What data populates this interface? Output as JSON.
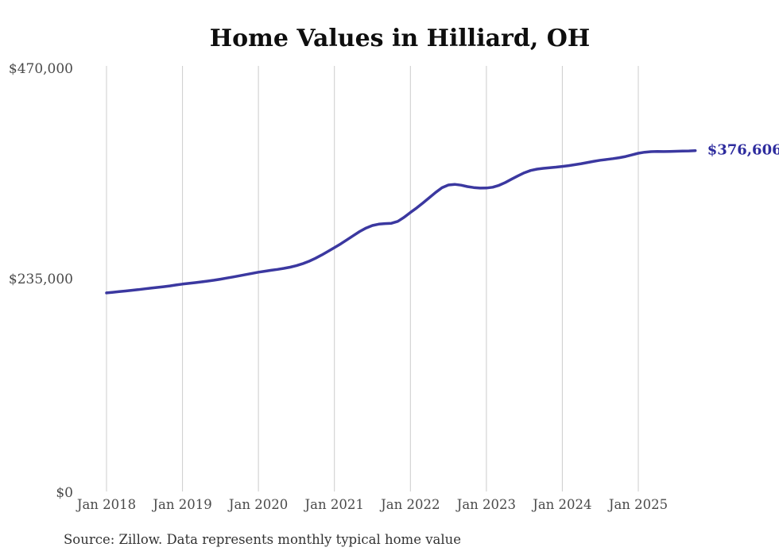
{
  "page": {
    "background": "#ffffff"
  },
  "source_note": "Source: Zillow. Data represents monthly typical home value",
  "chart_data": {
    "type": "line",
    "title": "Home Values in Hilliard, OH",
    "xlabel": "",
    "ylabel": "",
    "ylim": [
      0,
      470000
    ],
    "grid": "vertical-only",
    "legend": "none",
    "line_color": "#3b38a0",
    "grid_color": "#cccccc",
    "end_label": "$376,606",
    "end_label_color": "#2e2c9e",
    "end_value": 376606,
    "y_ticks": [
      {
        "value": 470000,
        "label": "$470,000"
      },
      {
        "value": 235000,
        "label": "$235,000"
      },
      {
        "value": 0,
        "label": "$0"
      }
    ],
    "x_tick_labels": [
      "Jan 2018",
      "Jan 2019",
      "Jan 2020",
      "Jan 2021",
      "Jan 2022",
      "Jan 2023",
      "Jan 2024",
      "Jan 2025"
    ],
    "x": [
      "2018-01",
      "2018-02",
      "2018-03",
      "2018-04",
      "2018-05",
      "2018-06",
      "2018-07",
      "2018-08",
      "2018-09",
      "2018-10",
      "2018-11",
      "2018-12",
      "2019-01",
      "2019-02",
      "2019-03",
      "2019-04",
      "2019-05",
      "2019-06",
      "2019-07",
      "2019-08",
      "2019-09",
      "2019-10",
      "2019-11",
      "2019-12",
      "2020-01",
      "2020-02",
      "2020-03",
      "2020-04",
      "2020-05",
      "2020-06",
      "2020-07",
      "2020-08",
      "2020-09",
      "2020-10",
      "2020-11",
      "2020-12",
      "2021-01",
      "2021-02",
      "2021-03",
      "2021-04",
      "2021-05",
      "2021-06",
      "2021-07",
      "2021-08",
      "2021-09",
      "2021-10",
      "2021-11",
      "2021-12",
      "2022-01",
      "2022-02",
      "2022-03",
      "2022-04",
      "2022-05",
      "2022-06",
      "2022-07",
      "2022-08",
      "2022-09",
      "2022-10",
      "2022-11",
      "2022-12",
      "2023-01",
      "2023-02",
      "2023-03",
      "2023-04",
      "2023-05",
      "2023-06",
      "2023-07",
      "2023-08",
      "2023-09",
      "2023-10",
      "2023-11",
      "2023-12",
      "2024-01",
      "2024-02",
      "2024-03",
      "2024-04",
      "2024-05",
      "2024-06",
      "2024-07",
      "2024-08",
      "2024-09",
      "2024-10",
      "2024-11",
      "2024-12",
      "2025-01",
      "2025-02",
      "2025-03",
      "2025-04",
      "2025-05",
      "2025-06",
      "2025-07",
      "2025-08",
      "2025-09",
      "2025-10"
    ],
    "series": [
      {
        "name": "Typical home value",
        "values": [
          219800,
          220500,
          221200,
          221900,
          222700,
          223400,
          224200,
          225000,
          225800,
          226600,
          227500,
          228500,
          229500,
          230300,
          231100,
          231900,
          232800,
          233800,
          234900,
          236100,
          237400,
          238700,
          240000,
          241300,
          242600,
          243700,
          244700,
          245700,
          246800,
          248100,
          249800,
          252000,
          254700,
          257900,
          261600,
          265600,
          269700,
          273900,
          278400,
          283000,
          287500,
          291300,
          294100,
          295600,
          296200,
          296500,
          298600,
          303100,
          308400,
          313500,
          319000,
          324800,
          330600,
          335700,
          338700,
          339400,
          338500,
          337000,
          335900,
          335300,
          335400,
          336300,
          338400,
          341500,
          345200,
          348900,
          352200,
          354700,
          356200,
          357100,
          357800,
          358400,
          359200,
          360100,
          361100,
          362300,
          363600,
          364900,
          366000,
          366900,
          367800,
          368800,
          370100,
          371900,
          373700,
          374900,
          375500,
          375700,
          375600,
          375700,
          375900,
          376100,
          376300,
          376606
        ]
      }
    ]
  }
}
